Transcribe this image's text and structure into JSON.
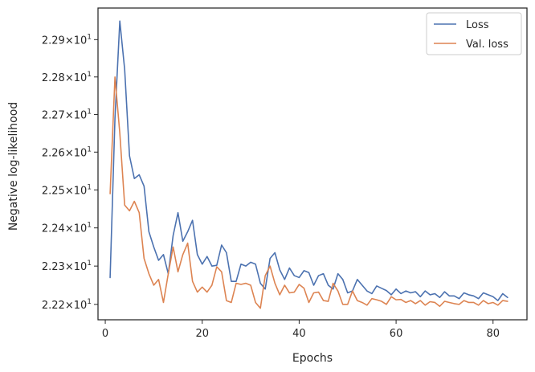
{
  "chart_data": {
    "type": "line",
    "title": "",
    "xlabel": "Epochs",
    "ylabel": "Negative log-likelihood",
    "xlim": [
      -1.5,
      87
    ],
    "ylim": [
      22.16,
      22.985
    ],
    "yscale": "log",
    "grid": false,
    "legend_position": "top-right",
    "x_ticks": [
      {
        "value": 0,
        "label": "0"
      },
      {
        "value": 20,
        "label": "20"
      },
      {
        "value": 40,
        "label": "40"
      },
      {
        "value": 60,
        "label": "60"
      },
      {
        "value": 80,
        "label": "80"
      }
    ],
    "y_ticks": [
      {
        "value": 22.2,
        "mantissa": "2.22",
        "exponent": "1"
      },
      {
        "value": 22.3,
        "mantissa": "2.23",
        "exponent": "1"
      },
      {
        "value": 22.4,
        "mantissa": "2.24",
        "exponent": "1"
      },
      {
        "value": 22.5,
        "mantissa": "2.25",
        "exponent": "1"
      },
      {
        "value": 22.6,
        "mantissa": "2.26",
        "exponent": "1"
      },
      {
        "value": 22.7,
        "mantissa": "2.27",
        "exponent": "1"
      },
      {
        "value": 22.8,
        "mantissa": "2.28",
        "exponent": "1"
      },
      {
        "value": 22.9,
        "mantissa": "2.29",
        "exponent": "1"
      }
    ],
    "x": [
      1,
      2,
      3,
      4,
      5,
      6,
      7,
      8,
      9,
      10,
      11,
      12,
      13,
      14,
      15,
      16,
      17,
      18,
      19,
      20,
      21,
      22,
      23,
      24,
      25,
      26,
      27,
      28,
      29,
      30,
      31,
      32,
      33,
      34,
      35,
      36,
      37,
      38,
      39,
      40,
      41,
      42,
      43,
      44,
      45,
      46,
      47,
      48,
      49,
      50,
      51,
      52,
      53,
      54,
      55,
      56,
      57,
      58,
      59,
      60,
      61,
      62,
      63,
      64,
      65,
      66,
      67,
      68,
      69,
      70,
      71,
      72,
      73,
      74,
      75,
      76,
      77,
      78,
      79,
      80,
      81,
      82,
      83
    ],
    "series": [
      {
        "name": "Loss",
        "color": "#4c72b0",
        "values": [
          22.27,
          22.69,
          22.95,
          22.82,
          22.59,
          22.53,
          22.54,
          22.51,
          22.39,
          22.35,
          22.315,
          22.33,
          22.28,
          22.38,
          22.44,
          22.365,
          22.39,
          22.42,
          22.33,
          22.305,
          22.325,
          22.3,
          22.302,
          22.355,
          22.335,
          22.26,
          22.26,
          22.305,
          22.3,
          22.31,
          22.305,
          22.255,
          22.24,
          22.32,
          22.335,
          22.29,
          22.265,
          22.295,
          22.275,
          22.27,
          22.288,
          22.283,
          22.25,
          22.275,
          22.28,
          22.25,
          22.24,
          22.28,
          22.265,
          22.23,
          22.235,
          22.265,
          22.25,
          22.235,
          22.228,
          22.248,
          22.242,
          22.236,
          22.225,
          22.24,
          22.228,
          22.235,
          22.23,
          22.233,
          22.22,
          22.235,
          22.225,
          22.228,
          22.218,
          22.233,
          22.222,
          22.222,
          22.215,
          22.23,
          22.225,
          22.222,
          22.215,
          22.23,
          22.225,
          22.22,
          22.21,
          22.228,
          22.218
        ]
      },
      {
        "name": "Val. loss",
        "color": "#dd8452",
        "values": [
          22.49,
          22.8,
          22.65,
          22.46,
          22.445,
          22.47,
          22.44,
          22.32,
          22.28,
          22.25,
          22.265,
          22.205,
          22.28,
          22.35,
          22.285,
          22.33,
          22.36,
          22.26,
          22.232,
          22.245,
          22.232,
          22.25,
          22.298,
          22.285,
          22.21,
          22.205,
          22.255,
          22.252,
          22.255,
          22.25,
          22.205,
          22.19,
          22.275,
          22.3,
          22.255,
          22.225,
          22.25,
          22.23,
          22.232,
          22.252,
          22.242,
          22.205,
          22.23,
          22.232,
          22.21,
          22.208,
          22.255,
          22.235,
          22.2,
          22.2,
          22.235,
          22.21,
          22.205,
          22.198,
          22.215,
          22.212,
          22.208,
          22.2,
          22.22,
          22.212,
          22.213,
          22.205,
          22.21,
          22.202,
          22.21,
          22.198,
          22.207,
          22.205,
          22.195,
          22.208,
          22.205,
          22.202,
          22.2,
          22.21,
          22.205,
          22.205,
          22.198,
          22.21,
          22.202,
          22.205,
          22.198,
          22.21,
          22.208
        ]
      }
    ]
  }
}
